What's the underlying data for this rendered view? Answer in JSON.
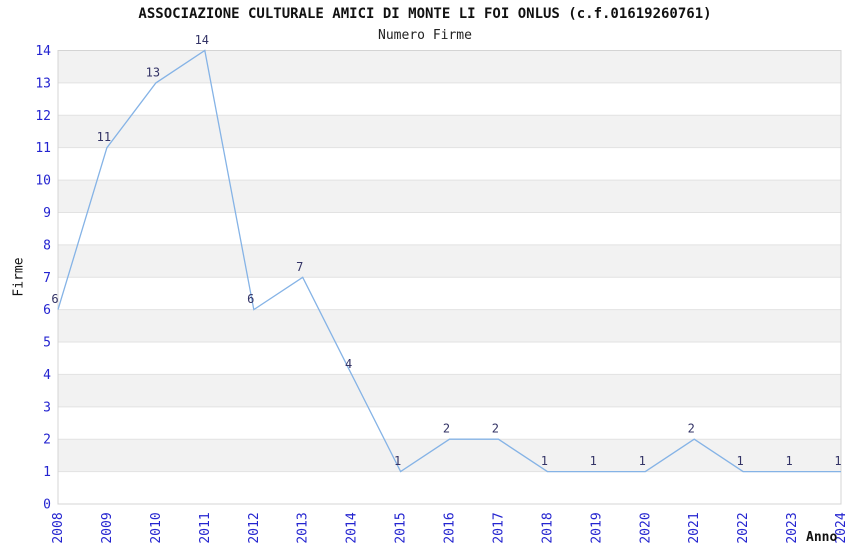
{
  "page": {
    "background": "#ffffff"
  },
  "chart_data": {
    "type": "line",
    "title": "ASSOCIAZIONE CULTURALE AMICI DI MONTE LI FOI ONLUS (c.f.01619260761)",
    "subtitle": "Numero Firme",
    "xlabel": "Anno",
    "ylabel": "Firme",
    "x": [
      "2008",
      "2009",
      "2010",
      "2011",
      "2012",
      "2013",
      "2014",
      "2015",
      "2016",
      "2017",
      "2018",
      "2019",
      "2020",
      "2021",
      "2022",
      "2023",
      "2024"
    ],
    "values": [
      6,
      11,
      13,
      14,
      6,
      7,
      4,
      1,
      2,
      2,
      1,
      1,
      1,
      2,
      1,
      1,
      1
    ],
    "ylim": [
      0,
      14
    ],
    "ytick_step": 1,
    "grid": true,
    "legend": "none",
    "point_value_labels": true,
    "band_pattern": "gray horizontal bands between odd and even gridlines (1-2, 3-4, ... 13-14)",
    "colors": {
      "line": "#85b3e6",
      "tick_label": "#2424d0",
      "value_label": "#333366",
      "band": "#f2f2f2",
      "grid": "#e2e2e2",
      "border": "#d4d4d4",
      "title": "#111111",
      "axis_label": "#111111"
    }
  }
}
